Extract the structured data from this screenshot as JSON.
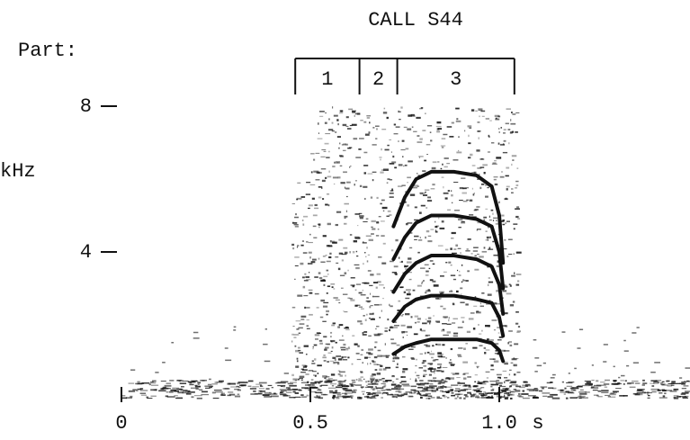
{
  "chart_data": {
    "type": "spectrogram",
    "title": "CALL S44",
    "parts_label": "Part:",
    "parts": [
      {
        "label": "1",
        "start": 0.46,
        "end": 0.63
      },
      {
        "label": "2",
        "start": 0.63,
        "end": 0.73
      },
      {
        "label": "3",
        "start": 0.73,
        "end": 1.04
      }
    ],
    "ylabel": "kHz",
    "xlabel": "s",
    "xlim": [
      0,
      1.5
    ],
    "xticks": [
      0,
      0.5,
      {
        "value": 1,
        "label": "1.0"
      }
    ],
    "ylim": [
      0,
      9
    ],
    "yticks": [
      4,
      8
    ],
    "color": "#111111",
    "series": [
      {
        "x": [
          0.72,
          0.75,
          0.78,
          0.82,
          0.88,
          0.94,
          0.98,
          1.0,
          1.01
        ],
        "values": [
          4.7,
          5.5,
          6.0,
          6.2,
          6.2,
          6.1,
          5.8,
          5.0,
          3.7
        ]
      },
      {
        "x": [
          0.72,
          0.75,
          0.78,
          0.82,
          0.88,
          0.94,
          0.98,
          1.0,
          1.01
        ],
        "values": [
          3.8,
          4.4,
          4.8,
          5.0,
          5.0,
          4.9,
          4.7,
          4.0,
          3.0
        ]
      },
      {
        "x": [
          0.72,
          0.75,
          0.78,
          0.82,
          0.88,
          0.94,
          0.98,
          1.0,
          1.01
        ],
        "values": [
          2.9,
          3.4,
          3.7,
          3.9,
          3.9,
          3.8,
          3.6,
          3.1,
          2.3
        ]
      },
      {
        "x": [
          0.72,
          0.75,
          0.78,
          0.82,
          0.88,
          0.94,
          0.98,
          1.0,
          1.01
        ],
        "values": [
          2.1,
          2.5,
          2.7,
          2.8,
          2.8,
          2.7,
          2.6,
          2.2,
          1.7
        ]
      },
      {
        "x": [
          0.72,
          0.75,
          0.78,
          0.82,
          0.88,
          0.94,
          0.98,
          1.0,
          1.01
        ],
        "values": [
          1.2,
          1.4,
          1.5,
          1.6,
          1.6,
          1.6,
          1.5,
          1.3,
          1.0
        ]
      }
    ]
  }
}
